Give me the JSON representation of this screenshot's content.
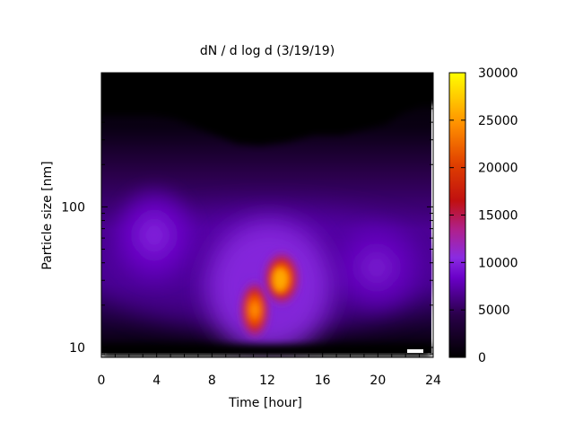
{
  "chart_data": {
    "type": "heatmap",
    "title": "dN / d log d (3/19/19)",
    "xlabel": "Time [hour]",
    "ylabel": "Particle size [nm]",
    "xlim": [
      0,
      24
    ],
    "ylim_nm": [
      8.5,
      900
    ],
    "y_scale": "log",
    "x_ticks": [
      0,
      4,
      8,
      12,
      16,
      20,
      24
    ],
    "y_ticks": [
      10,
      100
    ],
    "colorbar": {
      "min": 0,
      "max": 30000,
      "ticks": [
        0,
        5000,
        10000,
        15000,
        20000,
        25000,
        30000
      ],
      "palette": [
        "#000000",
        "#2a004a",
        "#6a00c8",
        "#8a2be2",
        "#b0208a",
        "#d02000",
        "#ff7000",
        "#ffc000",
        "#ffff00"
      ]
    },
    "features": [
      {
        "time_hour": 4,
        "size_nm": 65,
        "value": 9000
      },
      {
        "time_hour": 11,
        "size_nm": 17,
        "value": 20000
      },
      {
        "time_hour": 13,
        "size_nm": 28,
        "value": 26000
      },
      {
        "time_hour": 20,
        "size_nm": 38,
        "value": 8000
      }
    ],
    "grid": false,
    "legend": "colorbar-right"
  }
}
